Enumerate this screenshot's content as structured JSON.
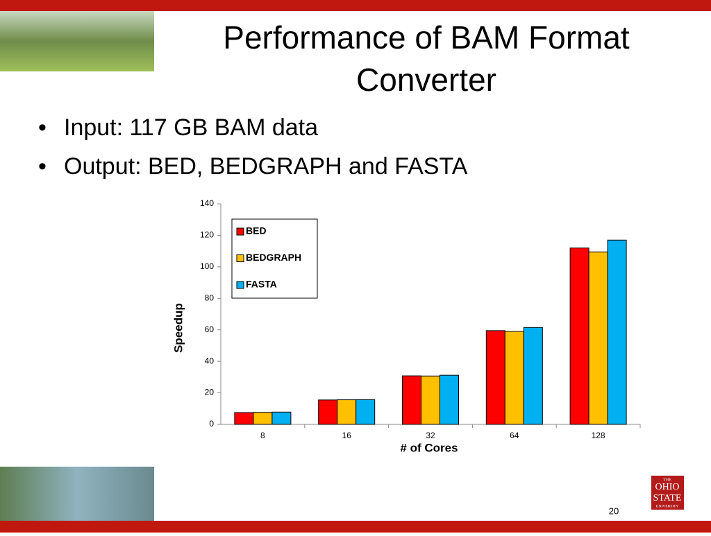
{
  "slide": {
    "title_lines": [
      "Performance of BAM Format",
      "Converter"
    ],
    "bullets": [
      "Input: 117 GB BAM data",
      "Output: BED, BEDGRAPH and FASTA"
    ],
    "logo_lines": [
      "THE",
      "OHIO",
      "STATE",
      "UNIVERSITY"
    ],
    "page_number": "20"
  },
  "chart_data": {
    "type": "bar",
    "x_label": "# of Cores",
    "y_label": "Speedup",
    "categories": [
      "8",
      "16",
      "32",
      "64",
      "128"
    ],
    "series": [
      {
        "name": "BED",
        "color": "#ff0000",
        "values": [
          7.5,
          15.5,
          30.8,
          59.5,
          112
        ]
      },
      {
        "name": "BEDGRAPH",
        "color": "#ffc000",
        "values": [
          7.6,
          15.6,
          30.7,
          59.0,
          109.5
        ]
      },
      {
        "name": "FASTA",
        "color": "#00b0f0",
        "values": [
          7.8,
          15.7,
          31.2,
          61.5,
          117
        ]
      }
    ],
    "ylim": [
      0,
      140
    ],
    "yticks": [
      0,
      20,
      40,
      60,
      80,
      100,
      120,
      140
    ],
    "legend": "upper-left"
  }
}
